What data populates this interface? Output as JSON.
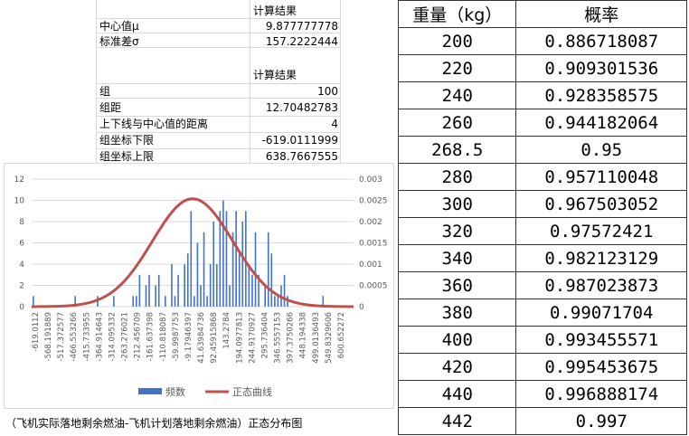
{
  "stats_block": {
    "group1": {
      "header": "计算结果",
      "rows": [
        {
          "label": "中心值μ",
          "value": "9.877777778"
        },
        {
          "label": "标准差σ",
          "value": "157.2222444"
        }
      ]
    },
    "group2": {
      "header": "计算结果",
      "rows": [
        {
          "label": "组",
          "value": "100"
        },
        {
          "label": "组距",
          "value": "12.70482783"
        },
        {
          "label": "上下线与中心值的距离",
          "value": "4"
        },
        {
          "label": "组坐标下限",
          "value": "-619.0111999"
        },
        {
          "label": "组坐标上限",
          "value": "638.7667555"
        }
      ]
    }
  },
  "colors": {
    "bars": "#4472c4",
    "curve": "#c0504d",
    "grid": "#d9d9d9",
    "tick_text": "#595959"
  },
  "chart_data": {
    "type": "bar",
    "title": "",
    "xlabel": "",
    "ylabel": "",
    "ylim": [
      0,
      12
    ],
    "y2lim": [
      0,
      0.003
    ],
    "y_ticks": [
      "0",
      "2",
      "4",
      "6",
      "8",
      "10",
      "12"
    ],
    "y2_ticks": [
      "0",
      "0.0005",
      "0.001",
      "0.0015",
      "0.002",
      "0.0025",
      "0.003"
    ],
    "x_tick_labels": [
      "-619.0112",
      "-568.191889",
      "-517.372577",
      "-466.553266",
      "-415.733955",
      "-364.914643",
      "-314.095332",
      "-263.276021",
      "-212.456709",
      "-161.637398",
      "-110.818087",
      "-59.9987753",
      "-9.17946397",
      "41.63984736",
      "92.45915868",
      "143.2784",
      "194.0977813",
      "244.9170927",
      "295.736404",
      "346.5557153",
      "397.3750266",
      "448.194338",
      "499.0136493",
      "549.8329606",
      "600.652272"
    ],
    "x_range": [
      -619.0112,
      638.7668
    ],
    "legend": [
      "频数",
      "正态曲线"
    ],
    "legend_position": "bottom",
    "series": [
      {
        "name": "频数",
        "type": "bar",
        "axis": "left",
        "values": [
          1,
          0,
          0,
          0,
          0,
          0,
          0,
          0,
          0,
          0,
          0,
          0,
          0,
          1,
          0,
          0,
          0,
          0,
          0,
          0,
          1,
          0,
          0,
          0,
          0,
          1,
          0,
          0,
          0,
          0,
          0,
          1,
          1,
          3,
          0,
          2,
          3,
          0,
          2,
          3,
          0,
          1,
          0,
          4,
          1,
          3,
          0,
          4,
          5,
          9,
          1,
          6,
          2,
          7,
          1,
          4,
          8,
          4,
          9,
          10,
          9,
          2,
          7,
          9,
          5,
          8,
          9,
          4,
          3,
          7,
          3,
          0,
          2,
          7,
          5,
          1,
          1,
          2,
          3,
          1,
          0,
          0,
          0,
          0,
          0,
          0,
          0,
          0,
          0,
          0,
          1,
          0,
          0,
          0,
          0,
          0,
          0,
          0,
          0,
          0
        ]
      },
      {
        "name": "正态曲线",
        "type": "line",
        "axis": "right",
        "mean": 9.877777778,
        "std": 157.2222444,
        "x_start": -619.0111999,
        "x_end": 638.7667555
      }
    ]
  },
  "chart_caption": "（飞机实际落地剩余燃油-飞机计划落地剩余燃油）正态分布图",
  "prob_table": {
    "headers": [
      "重量（kg）",
      "概率"
    ],
    "rows": [
      [
        "200",
        "0.886718087"
      ],
      [
        "220",
        "0.909301536"
      ],
      [
        "240",
        "0.928358575"
      ],
      [
        "260",
        "0.944182064"
      ],
      [
        "268.5",
        "0.95"
      ],
      [
        "280",
        "0.957110048"
      ],
      [
        "300",
        "0.967503052"
      ],
      [
        "320",
        "0.97572421"
      ],
      [
        "340",
        "0.982123129"
      ],
      [
        "360",
        "0.987023873"
      ],
      [
        "380",
        "0.99071704"
      ],
      [
        "400",
        "0.993455571"
      ],
      [
        "420",
        "0.995453675"
      ],
      [
        "440",
        "0.996888174"
      ],
      [
        "442",
        "0.997"
      ]
    ]
  }
}
